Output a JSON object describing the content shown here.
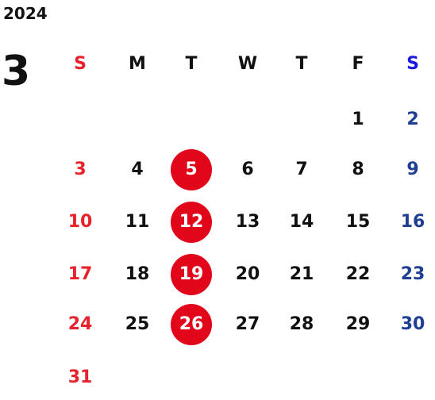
{
  "year": "2024",
  "month": "3",
  "weekdays": [
    "S",
    "M",
    "T",
    "W",
    "T",
    "F",
    "S"
  ],
  "weeks": [
    [
      "",
      "",
      "",
      "",
      "",
      "1",
      "2"
    ],
    [
      "3",
      "4",
      "5",
      "6",
      "7",
      "8",
      "9"
    ],
    [
      "10",
      "11",
      "12",
      "13",
      "14",
      "15",
      "16"
    ],
    [
      "17",
      "18",
      "19",
      "20",
      "21",
      "22",
      "23"
    ],
    [
      "24",
      "25",
      "26",
      "27",
      "28",
      "29",
      "30"
    ],
    [
      "31",
      "",
      "",
      "",
      "",
      "",
      ""
    ]
  ],
  "highlighted_days": [
    "5",
    "12",
    "19",
    "26"
  ],
  "colors": {
    "sunday": "#e8222a",
    "saturday_header": "#1a1adf",
    "saturday": "#1f3f93",
    "weekday": "#111111",
    "highlight_fill": "#e2061b",
    "highlight_text": "#ffffff"
  }
}
